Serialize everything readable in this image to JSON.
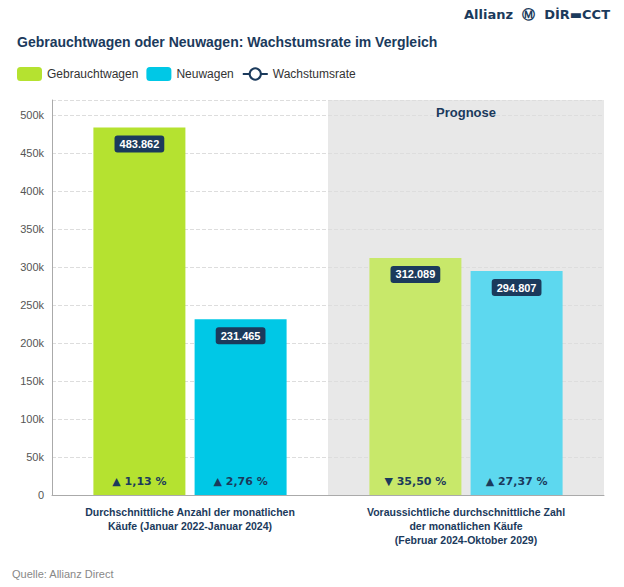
{
  "chart_data": {
    "type": "bar",
    "title": "Gebrauchtwagen oder Neuwagen: Wachstumsrate im Vergleich",
    "categories": [
      "Durchschnittliche Anzahl der monatlichen\nKäufe (Januar 2022-Januar 2024)",
      "Voraussichtliche durchschnittliche Zahl\nder monatlichen Käufe\n(Februar 2024-Oktober 2029)"
    ],
    "series": [
      {
        "name": "Gebrauchtwagen",
        "color": "#b5e230",
        "colors": [
          "#b5e230",
          "#c8e86a"
        ],
        "values": [
          483862,
          312089
        ],
        "value_labels": [
          "483.862",
          "312.089"
        ],
        "growth_rates": [
          "▲ 1,13 %",
          "▼ 35,50 %"
        ]
      },
      {
        "name": "Neuwagen",
        "color": "#00c8e6",
        "colors": [
          "#00c8e6",
          "#5dd8ef"
        ],
        "values": [
          231465,
          294807
        ],
        "value_labels": [
          "231.465",
          "294.807"
        ],
        "growth_rates": [
          "▲ 2,76 %",
          "▲ 27,37 %"
        ]
      },
      {
        "name": "Wachstumsrate",
        "type": "line",
        "color": "#1b3a5c",
        "values": [
          null,
          null
        ]
      }
    ],
    "ylim": [
      0,
      520000
    ],
    "yticks": [
      0,
      {
        "value": 50000,
        "label": "50k"
      },
      {
        "value": 100000,
        "label": "100k"
      },
      {
        "value": 150000,
        "label": "150k"
      },
      {
        "value": 200000,
        "label": "200k"
      },
      {
        "value": 250000,
        "label": "250k"
      },
      {
        "value": 300000,
        "label": "300k"
      },
      {
        "value": 350000,
        "label": "350k"
      },
      {
        "value": 400000,
        "label": "400k"
      },
      {
        "value": 450000,
        "label": "450k"
      },
      {
        "value": 500000,
        "label": "500k"
      }
    ],
    "grid": true,
    "data_labels": true,
    "legend": "upper left",
    "annotations": [
      {
        "text": "Prognose",
        "category": "Voraussichtliche durchschnittliche Zahl\nder monatlichen Käufe\n(Februar 2024-Oktober 2029)",
        "color": "#e8e8e8"
      },
      {
        "text": "Allianz  Ⓜ  DİR▬CCT"
      }
    ],
    "source": "Quelle: Allianz Direct"
  }
}
